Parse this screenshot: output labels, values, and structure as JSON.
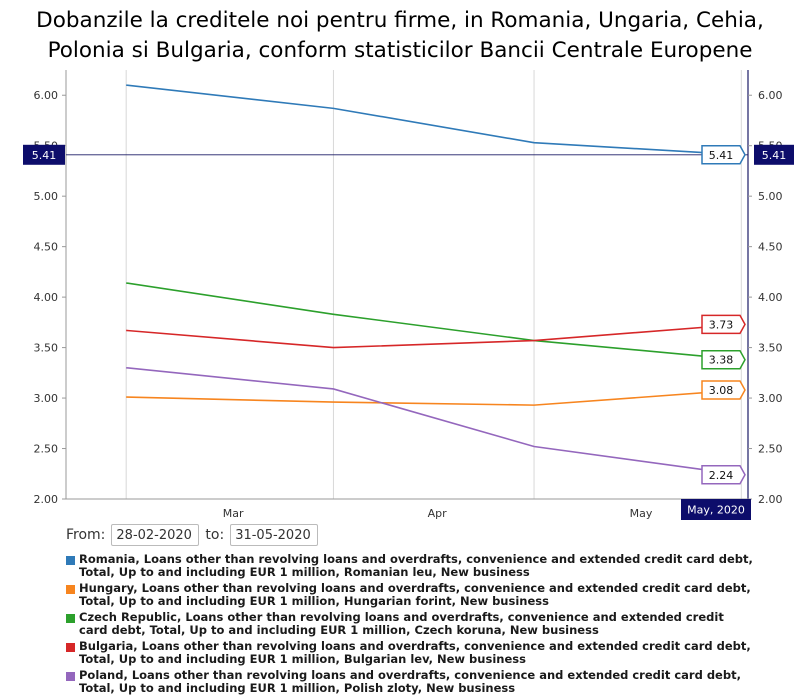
{
  "title_lines": [
    "Dobanzile la creditele noi pentru firme, in Romania, Ungaria, Cehia,",
    "Polonia si Bulgaria, conform statisticilor Bancii Centrale Europene"
  ],
  "range": {
    "from_label": "From:",
    "from_value": "28-02-2020",
    "to_label": "to:",
    "to_value": "31-05-2020"
  },
  "crosshair": {
    "value": "5.41",
    "date_label": "May, 2020"
  },
  "chart_data": {
    "type": "line",
    "x": [
      "2020-02-29",
      "2020-03-31",
      "2020-04-30",
      "2020-05-31"
    ],
    "x_tick_labels": [
      "Mar",
      "Apr",
      "May"
    ],
    "ylim": [
      2.0,
      6.25
    ],
    "y_ticks": [
      "2.00",
      "2.50",
      "3.00",
      "3.50",
      "4.00",
      "4.50",
      "5.00",
      "5.50",
      "6.00"
    ],
    "grid": true,
    "series": [
      {
        "name": "Romania, Loans other than revolving loans and overdrafts, convenience and extended credit card debt, Total, Up to and including EUR 1 million, Romanian leu, New business",
        "color": "#2f7ab8",
        "values": [
          6.1,
          5.87,
          5.53,
          5.41
        ],
        "last_label": "5.41"
      },
      {
        "name": "Hungary, Loans other than revolving loans and overdrafts, convenience and extended credit card debt, Total, Up to and including EUR 1 million, Hungarian forint, New business",
        "color": "#f7851f",
        "values": [
          3.01,
          2.96,
          2.93,
          3.08
        ],
        "last_label": "3.08"
      },
      {
        "name": "Czech Republic, Loans other than revolving loans and overdrafts, convenience and extended credit card debt, Total, Up to and including EUR 1 million, Czech koruna, New business",
        "color": "#2ca02c",
        "values": [
          4.14,
          3.83,
          3.57,
          3.38
        ],
        "last_label": "3.38"
      },
      {
        "name": "Bulgaria, Loans other than revolving loans and overdrafts, convenience and extended credit card debt, Total, Up to and including EUR 1 million, Bulgarian lev, New business",
        "color": "#d62728",
        "values": [
          3.67,
          3.5,
          3.57,
          3.73
        ],
        "last_label": "3.73"
      },
      {
        "name": "Poland, Loans other than revolving loans and overdrafts, convenience and extended credit card debt, Total, Up to and including EUR 1 million, Polish zloty, New business",
        "color": "#9467bd",
        "values": [
          3.3,
          3.09,
          2.52,
          2.24
        ],
        "last_label": "2.24"
      }
    ]
  }
}
